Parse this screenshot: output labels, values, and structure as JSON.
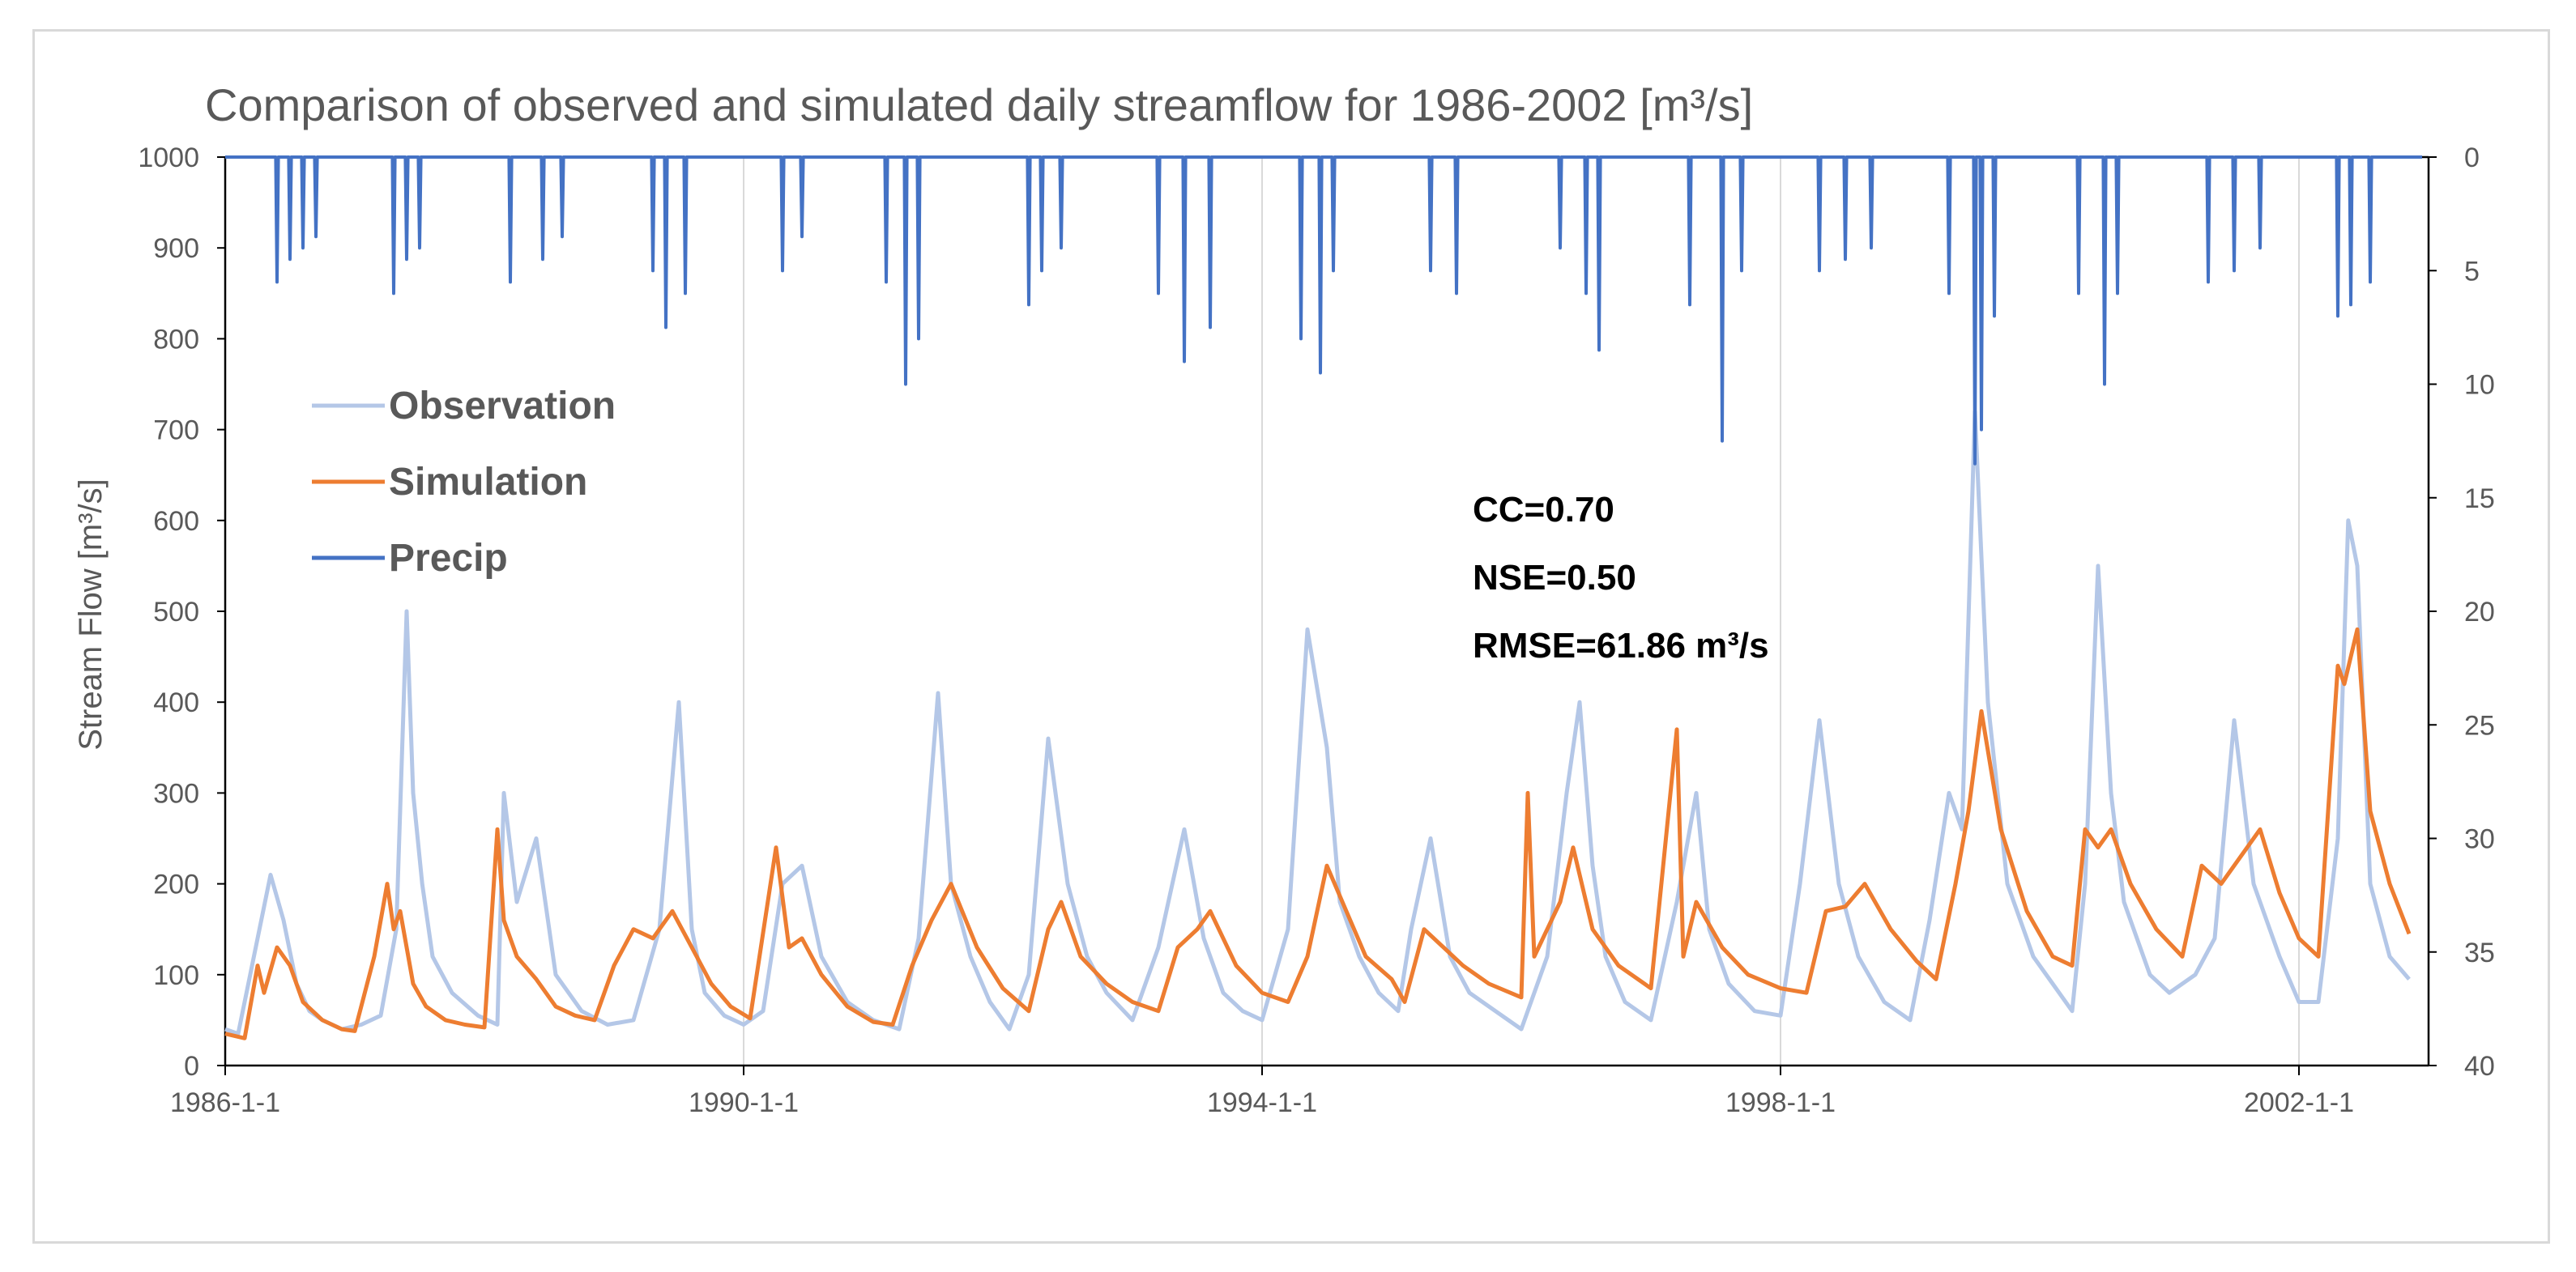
{
  "chart_data": {
    "type": "line",
    "title": "Comparison of observed and simulated daily streamflow for 1986-2002 [m³/s]",
    "ylabel": "Stream Flow [m³/s]",
    "xlabel": "",
    "ylim": [
      0,
      1000
    ],
    "y_ticks": [
      "0",
      "100",
      "200",
      "300",
      "400",
      "500",
      "600",
      "700",
      "800",
      "900",
      "1000"
    ],
    "y2lim": [
      0,
      40
    ],
    "y2_inverted": true,
    "y2_ticks": [
      "0",
      "5",
      "10",
      "15",
      "20",
      "25",
      "30",
      "35",
      "40"
    ],
    "xlim": [
      1986.0,
      2003.0
    ],
    "x_ticks": [
      {
        "value": 1986.0,
        "label": "1986-1-1"
      },
      {
        "value": 1990.0,
        "label": "1990-1-1"
      },
      {
        "value": 1994.0,
        "label": "1994-1-1"
      },
      {
        "value": 1998.0,
        "label": "1998-1-1"
      },
      {
        "value": 2002.0,
        "label": "2002-1-1"
      }
    ],
    "grid": "vertical",
    "legend_position": "top-left",
    "series": [
      {
        "name": "Observation",
        "color": "#b4c7e7",
        "axis": "left",
        "x": [
          1986.0,
          1986.1,
          1986.25,
          1986.35,
          1986.45,
          1986.55,
          1986.65,
          1986.75,
          1986.9,
          1987.05,
          1987.2,
          1987.32,
          1987.4,
          1987.45,
          1987.52,
          1987.6,
          1987.75,
          1987.95,
          1988.1,
          1988.15,
          1988.25,
          1988.4,
          1988.55,
          1988.75,
          1988.95,
          1989.15,
          1989.35,
          1989.5,
          1989.6,
          1989.7,
          1989.85,
          1990.0,
          1990.15,
          1990.3,
          1990.45,
          1990.6,
          1990.8,
          1991.0,
          1991.2,
          1991.35,
          1991.5,
          1991.6,
          1991.75,
          1991.9,
          1992.05,
          1992.2,
          1992.35,
          1992.5,
          1992.65,
          1992.8,
          1993.0,
          1993.2,
          1993.4,
          1993.55,
          1993.7,
          1993.85,
          1994.0,
          1994.2,
          1994.35,
          1994.5,
          1994.6,
          1994.75,
          1994.9,
          1995.05,
          1995.15,
          1995.3,
          1995.45,
          1995.6,
          1995.8,
          1996.0,
          1996.2,
          1996.35,
          1996.45,
          1996.55,
          1996.65,
          1996.8,
          1997.0,
          1997.2,
          1997.35,
          1997.45,
          1997.6,
          1997.8,
          1998.0,
          1998.15,
          1998.3,
          1998.45,
          1998.6,
          1998.8,
          1999.0,
          1999.15,
          1999.3,
          1999.4,
          1999.5,
          1999.6,
          1999.75,
          1999.95,
          2000.1,
          2000.25,
          2000.35,
          2000.45,
          2000.55,
          2000.65,
          2000.85,
          2001.0,
          2001.2,
          2001.35,
          2001.5,
          2001.65,
          2001.85,
          2002.0,
          2002.15,
          2002.3,
          2002.38,
          2002.45,
          2002.55,
          2002.7,
          2002.85
        ],
        "values": [
          40,
          35,
          140,
          210,
          160,
          90,
          60,
          50,
          40,
          45,
          55,
          150,
          500,
          300,
          200,
          120,
          80,
          55,
          45,
          300,
          180,
          250,
          100,
          60,
          45,
          50,
          150,
          400,
          150,
          80,
          55,
          45,
          60,
          200,
          220,
          120,
          70,
          50,
          40,
          140,
          410,
          200,
          120,
          70,
          40,
          100,
          360,
          200,
          120,
          80,
          50,
          130,
          260,
          140,
          80,
          60,
          50,
          150,
          480,
          350,
          180,
          120,
          80,
          60,
          150,
          250,
          120,
          80,
          60,
          40,
          120,
          300,
          400,
          220,
          120,
          70,
          50,
          180,
          300,
          150,
          90,
          60,
          55,
          200,
          380,
          200,
          120,
          70,
          50,
          160,
          300,
          260,
          720,
          400,
          200,
          120,
          90,
          60,
          200,
          550,
          300,
          180,
          100,
          80,
          100,
          140,
          380,
          200,
          120,
          70,
          70,
          250,
          600,
          550,
          200,
          120,
          95
        ]
      },
      {
        "name": "Simulation",
        "color": "#ed7d31",
        "axis": "left",
        "x": [
          1986.0,
          1986.15,
          1986.25,
          1986.3,
          1986.4,
          1986.5,
          1986.6,
          1986.75,
          1986.9,
          1987.0,
          1987.15,
          1987.25,
          1987.3,
          1987.35,
          1987.45,
          1987.55,
          1987.7,
          1987.85,
          1988.0,
          1988.1,
          1988.15,
          1988.25,
          1988.4,
          1988.55,
          1988.7,
          1988.85,
          1989.0,
          1989.15,
          1989.3,
          1989.45,
          1989.6,
          1989.75,
          1989.9,
          1990.05,
          1990.25,
          1990.35,
          1990.45,
          1990.6,
          1990.8,
          1991.0,
          1991.15,
          1991.3,
          1991.45,
          1991.6,
          1991.8,
          1992.0,
          1992.2,
          1992.35,
          1992.45,
          1992.6,
          1992.8,
          1993.0,
          1993.2,
          1993.35,
          1993.5,
          1993.6,
          1993.8,
          1994.0,
          1994.2,
          1994.35,
          1994.5,
          1994.65,
          1994.8,
          1995.0,
          1995.1,
          1995.25,
          1995.4,
          1995.55,
          1995.75,
          1996.0,
          1996.05,
          1996.1,
          1996.3,
          1996.4,
          1996.55,
          1996.75,
          1997.0,
          1997.2,
          1997.25,
          1997.35,
          1997.55,
          1997.75,
          1998.0,
          1998.2,
          1998.35,
          1998.5,
          1998.65,
          1998.85,
          1999.05,
          1999.2,
          1999.35,
          1999.45,
          1999.55,
          1999.7,
          1999.9,
          2000.1,
          2000.25,
          2000.35,
          2000.45,
          2000.55,
          2000.7,
          2000.9,
          2001.1,
          2001.25,
          2001.4,
          2001.55,
          2001.7,
          2001.85,
          2002.0,
          2002.15,
          2002.3,
          2002.35,
          2002.45,
          2002.55,
          2002.7,
          2002.85
        ],
        "values": [
          35,
          30,
          110,
          80,
          130,
          110,
          70,
          50,
          40,
          38,
          120,
          200,
          150,
          170,
          90,
          65,
          50,
          45,
          42,
          260,
          160,
          120,
          95,
          65,
          55,
          50,
          110,
          150,
          140,
          170,
          130,
          90,
          65,
          52,
          240,
          130,
          140,
          100,
          65,
          48,
          45,
          110,
          160,
          200,
          130,
          85,
          60,
          150,
          180,
          120,
          90,
          70,
          60,
          130,
          150,
          170,
          110,
          80,
          70,
          120,
          220,
          170,
          120,
          95,
          70,
          150,
          130,
          110,
          90,
          75,
          300,
          120,
          180,
          240,
          150,
          110,
          85,
          370,
          120,
          180,
          130,
          100,
          85,
          80,
          170,
          175,
          200,
          150,
          115,
          95,
          200,
          280,
          390,
          260,
          170,
          120,
          110,
          260,
          240,
          260,
          200,
          150,
          120,
          220,
          200,
          230,
          260,
          190,
          140,
          120,
          440,
          420,
          480,
          280,
          200,
          145
        ]
      },
      {
        "name": "Precip",
        "color": "#4472c4",
        "axis": "right",
        "x": [
          1986.4,
          1986.5,
          1986.6,
          1986.7,
          1987.3,
          1987.4,
          1987.5,
          1988.2,
          1988.45,
          1988.6,
          1989.3,
          1989.4,
          1989.55,
          1990.3,
          1990.45,
          1991.1,
          1991.25,
          1991.35,
          1992.2,
          1992.3,
          1992.45,
          1993.2,
          1993.4,
          1993.6,
          1994.3,
          1994.45,
          1994.55,
          1995.3,
          1995.5,
          1996.3,
          1996.5,
          1996.6,
          1997.3,
          1997.55,
          1997.7,
          1998.3,
          1998.5,
          1998.7,
          1999.3,
          1999.5,
          1999.55,
          1999.65,
          2000.3,
          2000.5,
          2000.6,
          2001.3,
          2001.5,
          2001.7,
          2002.3,
          2002.4,
          2002.55
        ],
        "values": [
          5.5,
          4.5,
          4.0,
          3.5,
          6,
          4.5,
          4,
          5.5,
          4.5,
          3.5,
          5,
          7.5,
          6,
          5,
          3.5,
          5.5,
          10,
          8,
          6.5,
          5,
          4,
          6,
          9,
          7.5,
          8,
          9.5,
          5,
          5,
          6,
          4,
          6,
          8.5,
          6.5,
          12.5,
          5,
          5,
          4.5,
          4,
          6,
          13.5,
          12,
          7,
          6,
          10,
          6,
          5.5,
          5,
          4,
          7,
          6.5,
          5.5
        ]
      }
    ],
    "annotations": [
      "CC=0.70",
      "NSE=0.50",
      "RMSE=61.86 m³/s"
    ]
  }
}
